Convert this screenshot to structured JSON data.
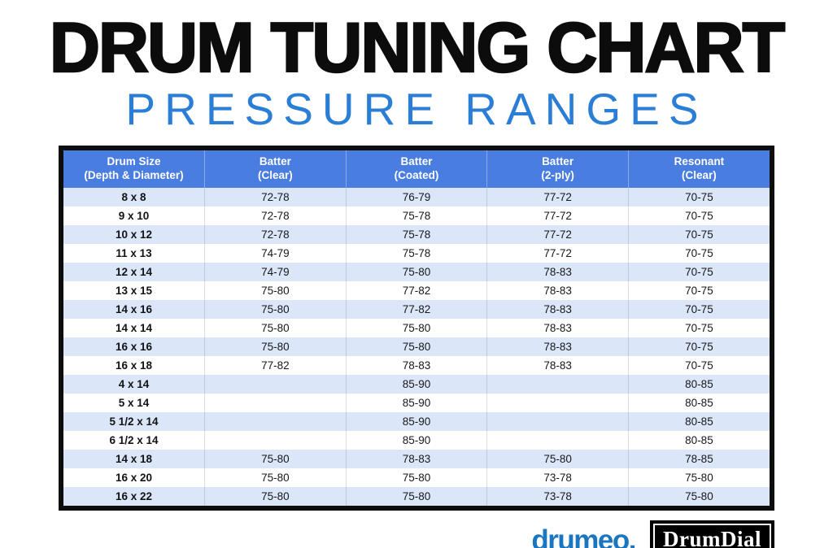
{
  "title": "DRUM TUNING CHART",
  "subtitle": "PRESSURE RANGES",
  "colors": {
    "title_black": "#0c0c0c",
    "subtitle_blue": "#2b7ed6",
    "header_blue": "#4a7de0",
    "row_alt_blue": "#dbe6f8",
    "row_white": "#ffffff",
    "drumeo_blue": "#1b76c0",
    "drumdial_black": "#000000"
  },
  "table": {
    "header_lines": [
      {
        "line1": "Drum Size",
        "line2": "(Depth & Diameter)"
      },
      {
        "line1": "Batter",
        "line2": "(Clear)"
      },
      {
        "line1": "Batter",
        "line2": "(Coated)"
      },
      {
        "line1": "Batter",
        "line2": "(2-ply)"
      },
      {
        "line1": "Resonant",
        "line2": "(Clear)"
      }
    ]
  },
  "chart_data": {
    "type": "table",
    "title": "DRUM TUNING CHART",
    "subtitle": "PRESSURE RANGES",
    "columns": [
      "Drum Size (Depth & Diameter)",
      "Batter (Clear)",
      "Batter (Coated)",
      "Batter (2-ply)",
      "Resonant (Clear)"
    ],
    "rows": [
      [
        "8 x 8",
        "72-78",
        "76-79",
        "77-72",
        "70-75"
      ],
      [
        "9 x 10",
        "72-78",
        "75-78",
        "77-72",
        "70-75"
      ],
      [
        "10 x 12",
        "72-78",
        "75-78",
        "77-72",
        "70-75"
      ],
      [
        "11 x 13",
        "74-79",
        "75-78",
        "77-72",
        "70-75"
      ],
      [
        "12 x 14",
        "74-79",
        "75-80",
        "78-83",
        "70-75"
      ],
      [
        "13 x 15",
        "75-80",
        "77-82",
        "78-83",
        "70-75"
      ],
      [
        "14 x 16",
        "75-80",
        "77-82",
        "78-83",
        "70-75"
      ],
      [
        "14 x 14",
        "75-80",
        "75-80",
        "78-83",
        "70-75"
      ],
      [
        "16 x 16",
        "75-80",
        "75-80",
        "78-83",
        "70-75"
      ],
      [
        "16 x 18",
        "77-82",
        "78-83",
        "78-83",
        "70-75"
      ],
      [
        "4 x 14",
        "",
        "85-90",
        "",
        "80-85"
      ],
      [
        "5 x 14",
        "",
        "85-90",
        "",
        "80-85"
      ],
      [
        "5 1/2 x 14",
        "",
        "85-90",
        "",
        "80-85"
      ],
      [
        "6 1/2 x 14",
        "",
        "85-90",
        "",
        "80-85"
      ],
      [
        "14 x 18",
        "75-80",
        "78-83",
        "75-80",
        "78-85"
      ],
      [
        "16 x 20",
        "75-80",
        "75-80",
        "73-78",
        "75-80"
      ],
      [
        "16 x 22",
        "75-80",
        "75-80",
        "73-78",
        "75-80"
      ]
    ]
  },
  "footer": {
    "drumeo_label": "drumeo.",
    "drumdial_label": "DrumDial"
  }
}
